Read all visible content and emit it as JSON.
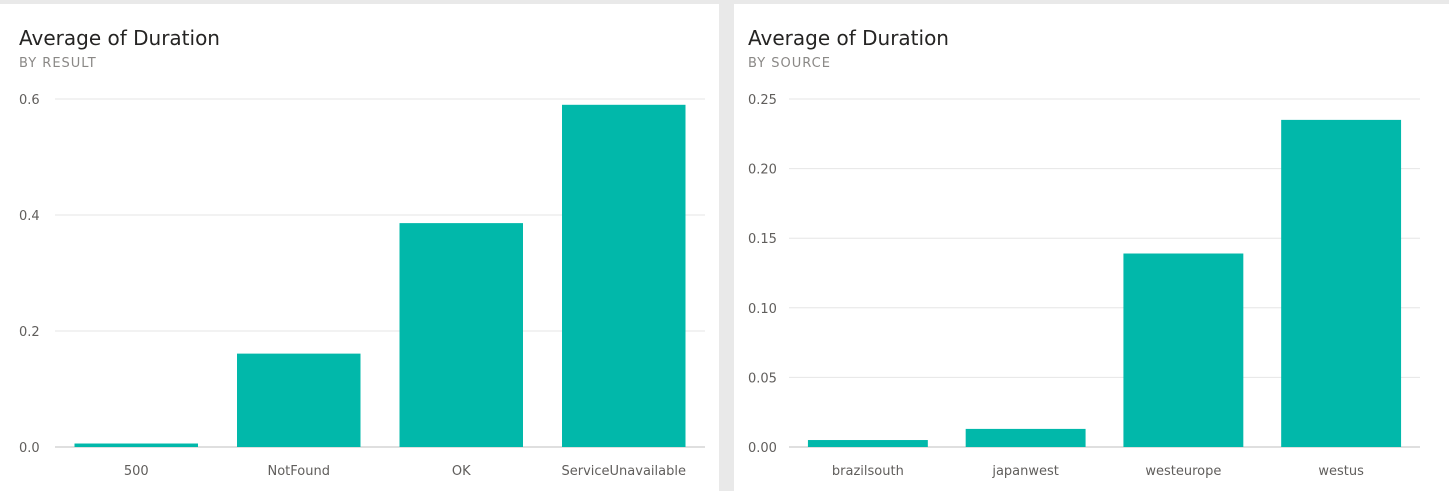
{
  "colors": {
    "bar": "#01b8aa",
    "gridline": "#e6e6e6",
    "axis": "#bfbfbf",
    "panel_background": "#ffffff",
    "page_background": "#e9e9e9"
  },
  "chart_data": [
    {
      "type": "bar",
      "title": "Average of Duration",
      "subtitle": "BY RESULT",
      "categories": [
        "500",
        "NotFound",
        "OK",
        "ServiceUnavailable"
      ],
      "values": [
        0.006,
        0.161,
        0.386,
        0.59
      ],
      "yticks": [
        0.0,
        0.2,
        0.4,
        0.6
      ],
      "ytick_labels": [
        "0.0",
        "0.2",
        "0.4",
        "0.6"
      ],
      "ylim": [
        0,
        0.6
      ],
      "grid": true,
      "xlabel": "",
      "ylabel": ""
    },
    {
      "type": "bar",
      "title": "Average of Duration",
      "subtitle": "BY SOURCE",
      "categories": [
        "brazilsouth",
        "japanwest",
        "westeurope",
        "westus"
      ],
      "values": [
        0.005,
        0.013,
        0.139,
        0.235
      ],
      "yticks": [
        0.0,
        0.05,
        0.1,
        0.15,
        0.2,
        0.25
      ],
      "ytick_labels": [
        "0.00",
        "0.05",
        "0.10",
        "0.15",
        "0.20",
        "0.25"
      ],
      "ylim": [
        0,
        0.25
      ],
      "grid": true,
      "xlabel": "",
      "ylabel": ""
    }
  ]
}
